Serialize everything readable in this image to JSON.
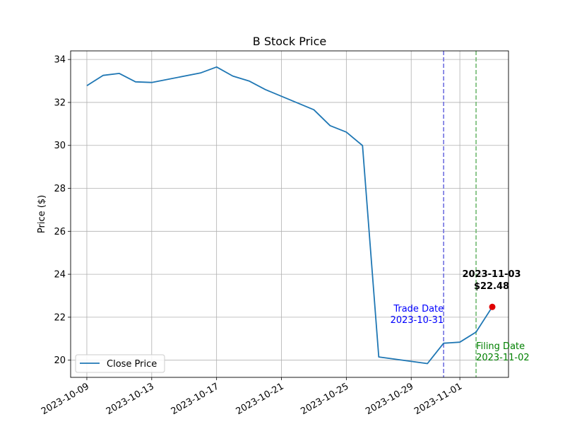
{
  "chart_data": {
    "type": "line",
    "title": "B Stock Price",
    "xlabel": "",
    "ylabel": "Price ($)",
    "ylim": [
      19.2,
      34.4
    ],
    "xlim": [
      "2023-10-08",
      "2023-11-04"
    ],
    "grid": true,
    "legend_placement": "lower-left",
    "y_ticks": [
      20,
      22,
      24,
      26,
      28,
      30,
      32,
      34
    ],
    "x_ticks": [
      "2023-10-09",
      "2023-10-13",
      "2023-10-17",
      "2023-10-21",
      "2023-10-25",
      "2023-10-29",
      "2023-11-01"
    ],
    "series": [
      {
        "name": "Close Price",
        "color": "#1f77b4",
        "x": [
          "2023-10-09",
          "2023-10-10",
          "2023-10-11",
          "2023-10-12",
          "2023-10-13",
          "2023-10-16",
          "2023-10-17",
          "2023-10-18",
          "2023-10-19",
          "2023-10-20",
          "2023-10-23",
          "2023-10-24",
          "2023-10-25",
          "2023-10-26",
          "2023-10-27",
          "2023-10-30",
          "2023-10-31",
          "2023-11-01",
          "2023-11-02",
          "2023-11-03"
        ],
        "y": [
          32.78,
          33.26,
          33.35,
          32.96,
          32.93,
          33.37,
          33.65,
          33.23,
          33.0,
          32.6,
          31.66,
          30.92,
          30.62,
          29.99,
          20.15,
          19.84,
          20.79,
          20.84,
          21.31,
          22.48
        ]
      }
    ],
    "vlines": [
      {
        "x": "2023-10-31",
        "color": "#7070e0",
        "label_line1": "Trade Date",
        "label_line2": "2023-10-31",
        "label_color": "#0000ff"
      },
      {
        "x": "2023-11-02",
        "color": "#70b870",
        "label_line1": "Filing Date",
        "label_line2": "2023-11-02",
        "label_color": "#008000"
      }
    ],
    "highlight": {
      "x": "2023-11-03",
      "y": 22.48,
      "color": "#e00000",
      "label_line1": "2023-11-03",
      "label_line2": "$22.48"
    }
  }
}
